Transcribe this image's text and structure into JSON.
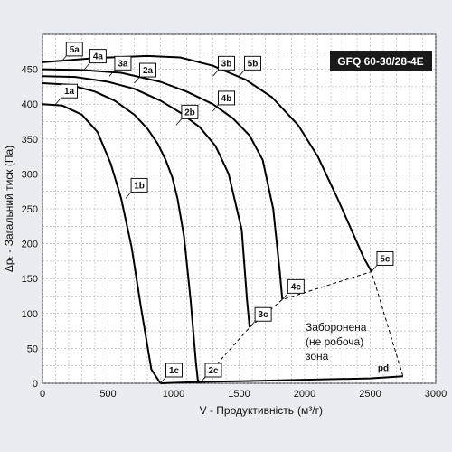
{
  "chart_data": {
    "type": "line",
    "title": "GFQ 60-30/28-4E",
    "xlabel": "V - Продуктивність",
    "xunit": "(м³/г)",
    "ylabel": "Δpₜ - Загальний тиск (Па)",
    "xlim": [
      0,
      3000
    ],
    "ylim": [
      0,
      500
    ],
    "xticks": [
      0,
      500,
      1000,
      1500,
      2000,
      2500,
      3000
    ],
    "yticks": [
      0,
      50,
      100,
      150,
      200,
      250,
      300,
      350,
      400,
      450
    ],
    "grid": true,
    "series": [
      {
        "id": "1",
        "x": [
          0,
          150,
          300,
          420,
          520,
          600,
          680,
          750,
          830,
          900
        ],
        "y": [
          400,
          398,
          385,
          360,
          315,
          265,
          195,
          110,
          20,
          0
        ]
      },
      {
        "id": "2",
        "x": [
          0,
          200,
          400,
          550,
          700,
          800,
          880,
          940,
          990,
          1030,
          1080,
          1130,
          1170,
          1185,
          1200
        ],
        "y": [
          430,
          428,
          418,
          405,
          385,
          365,
          343,
          320,
          295,
          265,
          210,
          120,
          30,
          5,
          0
        ]
      },
      {
        "id": "3",
        "x": [
          0,
          250,
          500,
          700,
          900,
          1050,
          1200,
          1320,
          1420,
          1520,
          1560,
          1580
        ],
        "y": [
          440,
          439,
          432,
          422,
          405,
          388,
          367,
          340,
          300,
          220,
          120,
          80
        ]
      },
      {
        "id": "4",
        "x": [
          0,
          300,
          600,
          900,
          1100,
          1300,
          1450,
          1580,
          1680,
          1760,
          1810,
          1830
        ],
        "y": [
          450,
          449,
          445,
          432,
          418,
          400,
          380,
          355,
          320,
          250,
          160,
          120
        ]
      },
      {
        "id": "5",
        "x": [
          0,
          400,
          800,
          1050,
          1300,
          1550,
          1750,
          1950,
          2100,
          2250,
          2380,
          2450,
          2510
        ],
        "y": [
          460,
          466,
          469,
          467,
          455,
          435,
          410,
          370,
          325,
          265,
          210,
          180,
          160
        ]
      },
      {
        "id": "pd",
        "x": [
          900,
          1200,
          1500,
          2000,
          2500,
          2750
        ],
        "y": [
          0,
          2,
          3,
          5,
          7,
          10
        ]
      }
    ],
    "limit_line": {
      "x": [
        1200,
        1580,
        1830,
        2510,
        2750
      ],
      "y": [
        0,
        80,
        120,
        160,
        10
      ]
    },
    "labels": [
      {
        "text": "1a",
        "x": 100,
        "y": 400
      },
      {
        "text": "1b",
        "x": 635,
        "y": 265
      },
      {
        "text": "1c",
        "x": 900,
        "y": 0
      },
      {
        "text": "2a",
        "x": 700,
        "y": 430
      },
      {
        "text": "2b",
        "x": 1020,
        "y": 370
      },
      {
        "text": "2c",
        "x": 1200,
        "y": 0
      },
      {
        "text": "3a",
        "x": 510,
        "y": 440
      },
      {
        "text": "3b",
        "x": 1300,
        "y": 440
      },
      {
        "text": "3c",
        "x": 1580,
        "y": 80
      },
      {
        "text": "4a",
        "x": 320,
        "y": 450
      },
      {
        "text": "4b",
        "x": 1300,
        "y": 390
      },
      {
        "text": "4c",
        "x": 1830,
        "y": 120
      },
      {
        "text": "5a",
        "x": 140,
        "y": 460
      },
      {
        "text": "5b",
        "x": 1500,
        "y": 440
      },
      {
        "text": "5c",
        "x": 2510,
        "y": 160
      },
      {
        "text": "pd",
        "x": 2600,
        "y": 10
      }
    ],
    "zone_label": [
      "Заборонена",
      "(не робоча)",
      "зона"
    ]
  }
}
